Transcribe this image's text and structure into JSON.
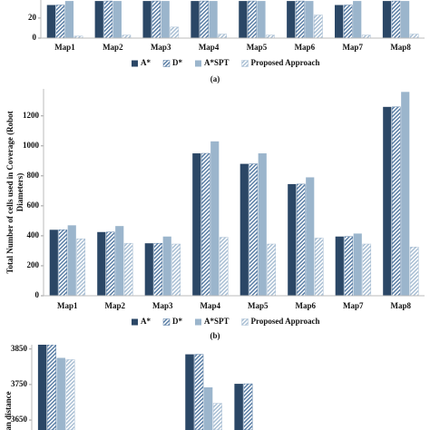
{
  "chart_data": [
    {
      "type": "bar",
      "caption": "(a)",
      "categories": [
        "Map1",
        "Map2",
        "Map3",
        "Map4",
        "Map5",
        "Map6",
        "Map7",
        "Map8"
      ],
      "ylim": [
        0,
        38
      ],
      "yticks": [
        0,
        20
      ],
      "series": [
        {
          "name": "A*",
          "color": "#2b4766",
          "hatch": false,
          "values": [
            33,
            37,
            37,
            37,
            37,
            37,
            33,
            37
          ]
        },
        {
          "name": "D*",
          "color": "#5b7fa6",
          "hatch": true,
          "values": [
            33,
            37,
            37,
            37,
            37,
            37,
            33,
            37
          ]
        },
        {
          "name": "A*SPT",
          "color": "#9bb5cc",
          "hatch": false,
          "values": [
            37,
            37,
            37,
            37,
            37,
            37,
            37,
            37
          ]
        },
        {
          "name": "Proposed Approach",
          "color": "#a9bfd4",
          "hatch": true,
          "values": [
            2,
            3,
            11,
            4,
            3,
            23,
            3,
            4
          ]
        }
      ]
    },
    {
      "type": "bar",
      "caption": "(b)",
      "y_label": [
        "Total Number of cells used in Coverage (Robot",
        "Diameters)"
      ],
      "categories": [
        "Map1",
        "Map2",
        "Map3",
        "Map4",
        "Map5",
        "Map6",
        "Map7",
        "Map8"
      ],
      "ylim": [
        0,
        1380
      ],
      "yticks": [
        0,
        200,
        400,
        600,
        800,
        1000,
        1200
      ],
      "series": [
        {
          "name": "A*",
          "color": "#2b4766",
          "hatch": false,
          "values": [
            440,
            425,
            350,
            950,
            880,
            745,
            395,
            1260
          ]
        },
        {
          "name": "D*",
          "color": "#5b7fa6",
          "hatch": true,
          "values": [
            440,
            425,
            350,
            950,
            880,
            745,
            395,
            1260
          ]
        },
        {
          "name": "A*SPT",
          "color": "#9bb5cc",
          "hatch": false,
          "values": [
            470,
            465,
            395,
            1030,
            950,
            790,
            415,
            1360
          ]
        },
        {
          "name": "Proposed Approach",
          "color": "#a9bfd4",
          "hatch": true,
          "values": [
            380,
            350,
            345,
            390,
            345,
            385,
            345,
            325
          ]
        }
      ]
    },
    {
      "type": "bar",
      "y_label": "clidean distance",
      "ylim": [
        3622,
        3862
      ],
      "yticks": [
        3650,
        3750,
        3850
      ],
      "series": [
        {
          "color": "#2b4766",
          "hatch": false,
          "values": [
            3862,
            null,
            null,
            3835,
            3752,
            null,
            null,
            null
          ]
        },
        {
          "color": "#5b7fa6",
          "hatch": true,
          "values": [
            3862,
            null,
            null,
            3835,
            3752,
            null,
            null,
            null
          ]
        },
        {
          "color": "#9bb5cc",
          "hatch": false,
          "values": [
            3825,
            null,
            null,
            3742,
            null,
            null,
            null,
            null
          ]
        },
        {
          "color": "#a9bfd4",
          "hatch": true,
          "values": [
            3820,
            null,
            null,
            3697,
            null,
            null,
            null,
            null
          ]
        }
      ]
    }
  ]
}
